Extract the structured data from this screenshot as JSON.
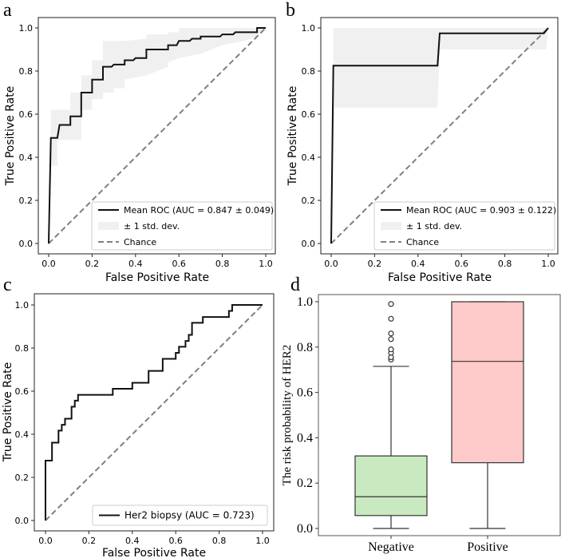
{
  "colors": {
    "roc_line": "#111111",
    "chance": "#808080",
    "band": "#f0f0f0",
    "negative_box": "#c9eac0",
    "positive_box": "#ffcaca"
  },
  "chart_data": [
    {
      "panel": "a",
      "type": "line",
      "xlabel": "False Positive Rate",
      "ylabel": "True Positive Rate",
      "xlim": [
        0,
        1
      ],
      "ylim": [
        0,
        1
      ],
      "ticks": [
        "0.0",
        "0.2",
        "0.4",
        "0.6",
        "0.8",
        "1.0"
      ],
      "legend": {
        "position": "lower-right",
        "entries": [
          "Mean ROC (AUC = 0.847 ± 0.049)",
          "± 1 std. dev.",
          "Chance"
        ]
      },
      "mean_roc": [
        [
          0,
          0
        ],
        [
          0.01,
          0.49
        ],
        [
          0.04,
          0.49
        ],
        [
          0.05,
          0.55
        ],
        [
          0.1,
          0.55
        ],
        [
          0.1,
          0.59
        ],
        [
          0.15,
          0.59
        ],
        [
          0.15,
          0.7
        ],
        [
          0.2,
          0.7
        ],
        [
          0.2,
          0.76
        ],
        [
          0.25,
          0.76
        ],
        [
          0.25,
          0.82
        ],
        [
          0.29,
          0.82
        ],
        [
          0.3,
          0.83
        ],
        [
          0.35,
          0.83
        ],
        [
          0.35,
          0.85
        ],
        [
          0.39,
          0.85
        ],
        [
          0.4,
          0.86
        ],
        [
          0.45,
          0.86
        ],
        [
          0.45,
          0.9
        ],
        [
          0.55,
          0.9
        ],
        [
          0.55,
          0.92
        ],
        [
          0.59,
          0.92
        ],
        [
          0.6,
          0.94
        ],
        [
          0.65,
          0.94
        ],
        [
          0.66,
          0.95
        ],
        [
          0.7,
          0.95
        ],
        [
          0.7,
          0.96
        ],
        [
          0.79,
          0.96
        ],
        [
          0.8,
          0.97
        ],
        [
          0.85,
          0.97
        ],
        [
          0.86,
          0.98
        ],
        [
          0.96,
          0.98
        ],
        [
          0.96,
          1.0
        ],
        [
          1,
          1
        ]
      ],
      "upper": [
        [
          0.01,
          0.62
        ],
        [
          0.1,
          0.62
        ],
        [
          0.1,
          0.7
        ],
        [
          0.15,
          0.7
        ],
        [
          0.15,
          0.78
        ],
        [
          0.2,
          0.78
        ],
        [
          0.2,
          0.85
        ],
        [
          0.25,
          0.85
        ],
        [
          0.25,
          0.94
        ],
        [
          0.35,
          0.94
        ],
        [
          0.45,
          0.95
        ],
        [
          0.45,
          0.97
        ],
        [
          0.55,
          0.97
        ],
        [
          0.55,
          0.98
        ],
        [
          0.6,
          0.98
        ],
        [
          0.6,
          1.0
        ],
        [
          1,
          1
        ]
      ],
      "lower": [
        [
          0.01,
          0.36
        ],
        [
          0.04,
          0.36
        ],
        [
          0.04,
          0.48
        ],
        [
          0.15,
          0.48
        ],
        [
          0.15,
          0.62
        ],
        [
          0.2,
          0.62
        ],
        [
          0.2,
          0.67
        ],
        [
          0.25,
          0.67
        ],
        [
          0.25,
          0.7
        ],
        [
          0.3,
          0.7
        ],
        [
          0.3,
          0.72
        ],
        [
          0.35,
          0.72
        ],
        [
          0.35,
          0.76
        ],
        [
          0.45,
          0.78
        ],
        [
          0.55,
          0.82
        ],
        [
          0.55,
          0.84
        ],
        [
          0.6,
          0.86
        ],
        [
          0.7,
          0.88
        ],
        [
          0.8,
          0.92
        ],
        [
          0.9,
          0.94
        ],
        [
          0.96,
          0.96
        ],
        [
          1,
          1
        ]
      ]
    },
    {
      "panel": "b",
      "type": "line",
      "xlabel": "False Positive Rate",
      "ylabel": "True Positive Rate",
      "xlim": [
        0,
        1
      ],
      "ylim": [
        0,
        1
      ],
      "ticks": [
        "0.0",
        "0.2",
        "0.4",
        "0.6",
        "0.8",
        "1.0"
      ],
      "legend": {
        "position": "lower-right",
        "entries": [
          "Mean ROC (AUC = 0.903 ± 0.122)",
          "± 1 std. dev.",
          "Chance"
        ]
      },
      "mean_roc": [
        [
          0,
          0
        ],
        [
          0.01,
          0.825
        ],
        [
          0.49,
          0.825
        ],
        [
          0.5,
          0.975
        ],
        [
          0.98,
          0.975
        ],
        [
          1,
          1
        ]
      ],
      "upper": [
        [
          0.01,
          1.0
        ],
        [
          1,
          1.0
        ]
      ],
      "lower": [
        [
          0.01,
          0.63
        ],
        [
          0.49,
          0.63
        ],
        [
          0.5,
          0.9
        ],
        [
          0.99,
          0.9
        ],
        [
          1,
          1
        ]
      ]
    },
    {
      "panel": "c",
      "type": "line",
      "xlabel": "False Positive Rate",
      "ylabel": "True Positive Rate",
      "xlim": [
        0,
        1
      ],
      "ylim": [
        0,
        1
      ],
      "ticks": [
        "0.0",
        "0.2",
        "0.4",
        "0.6",
        "0.8",
        "1.0"
      ],
      "legend": {
        "position": "lower-right",
        "entries": [
          "Her2 biopsy (AUC = 0.723)"
        ]
      },
      "mean_roc": [
        [
          0,
          0
        ],
        [
          0,
          0.278
        ],
        [
          0.03,
          0.278
        ],
        [
          0.03,
          0.361
        ],
        [
          0.06,
          0.361
        ],
        [
          0.06,
          0.417
        ],
        [
          0.075,
          0.417
        ],
        [
          0.075,
          0.444
        ],
        [
          0.09,
          0.444
        ],
        [
          0.09,
          0.472
        ],
        [
          0.12,
          0.472
        ],
        [
          0.12,
          0.528
        ],
        [
          0.135,
          0.528
        ],
        [
          0.135,
          0.556
        ],
        [
          0.15,
          0.556
        ],
        [
          0.15,
          0.583
        ],
        [
          0.31,
          0.583
        ],
        [
          0.31,
          0.611
        ],
        [
          0.4,
          0.611
        ],
        [
          0.4,
          0.639
        ],
        [
          0.475,
          0.639
        ],
        [
          0.475,
          0.694
        ],
        [
          0.54,
          0.694
        ],
        [
          0.54,
          0.75
        ],
        [
          0.6,
          0.75
        ],
        [
          0.6,
          0.778
        ],
        [
          0.615,
          0.778
        ],
        [
          0.615,
          0.806
        ],
        [
          0.645,
          0.806
        ],
        [
          0.645,
          0.833
        ],
        [
          0.66,
          0.833
        ],
        [
          0.66,
          0.861
        ],
        [
          0.675,
          0.861
        ],
        [
          0.675,
          0.917
        ],
        [
          0.725,
          0.917
        ],
        [
          0.725,
          0.944
        ],
        [
          0.845,
          0.944
        ],
        [
          0.845,
          0.972
        ],
        [
          0.86,
          0.972
        ],
        [
          0.86,
          1.0
        ],
        [
          1,
          1
        ]
      ]
    },
    {
      "panel": "d",
      "type": "box",
      "xlabel": "",
      "ylabel": "The risk probability of HER2",
      "ylim": [
        0,
        1
      ],
      "ticks": [
        "0.0",
        "0.2",
        "0.4",
        "0.6",
        "0.8",
        "1.0"
      ],
      "categories": [
        "Negative",
        "Positive"
      ],
      "boxes": [
        {
          "name": "Negative",
          "whisker_low": 0.0,
          "q1": 0.057,
          "median": 0.14,
          "q3": 0.32,
          "whisker_high": 0.715,
          "outliers": [
            0.745,
            0.755,
            0.775,
            0.79,
            0.835,
            0.86,
            0.925,
            0.99
          ]
        },
        {
          "name": "Positive",
          "whisker_low": 0.0,
          "q1": 0.29,
          "median": 0.737,
          "q3": 1.0,
          "whisker_high": 1.0,
          "outliers": []
        }
      ]
    }
  ]
}
